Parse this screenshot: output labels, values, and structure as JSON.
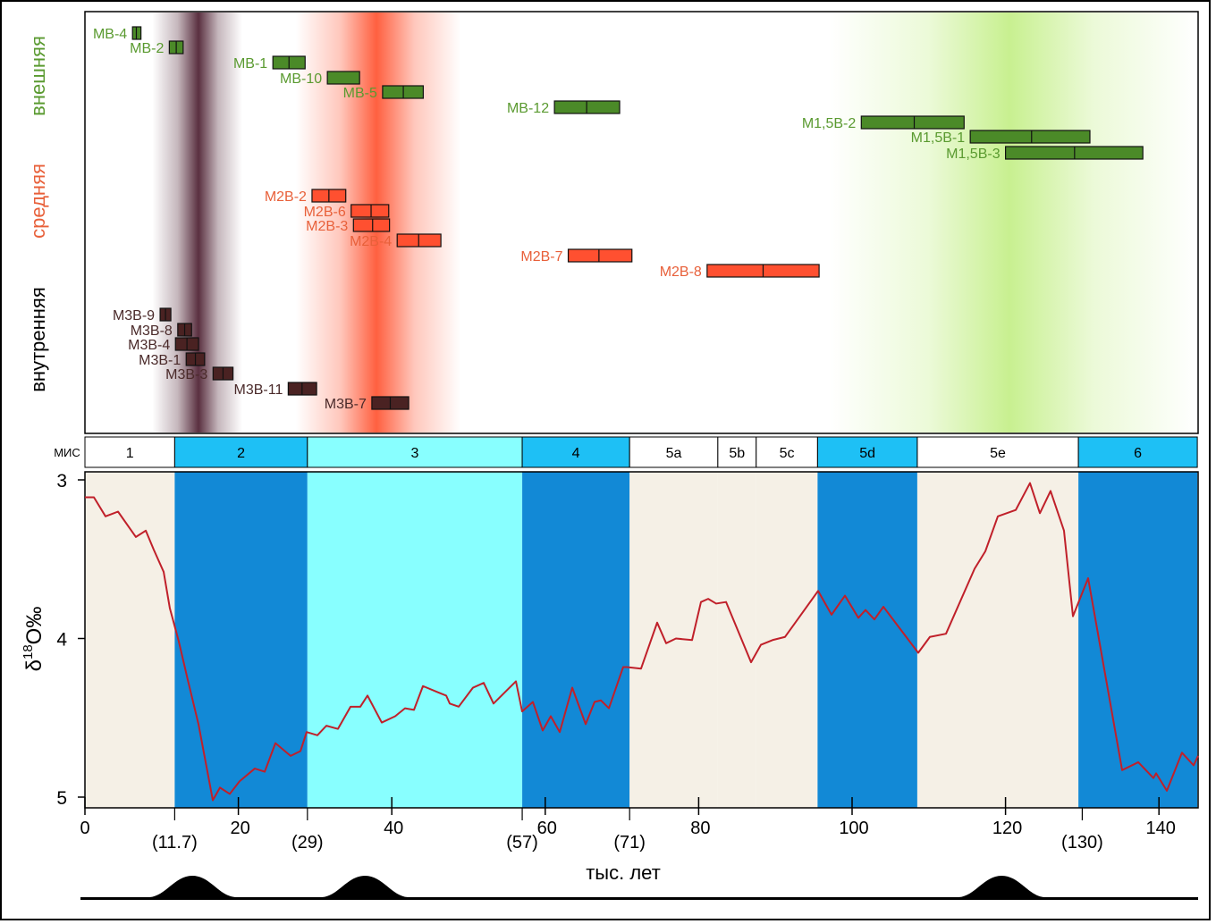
{
  "chart_data": [
    {
      "type": "range-bars",
      "title": "",
      "group_labels": {
        "outer": "внешняя",
        "middle": "средняя",
        "inner": "внутренняя"
      },
      "colors": {
        "outer": "#4b8a28",
        "outer_text": "#5a9a30",
        "middle": "#ff5030",
        "middle_text": "#e8603a",
        "inner": "#4a2222",
        "inner_text": "#4a2a2a"
      },
      "highlight_bands": [
        {
          "center": 14.8,
          "from": 8.8,
          "to": 20.5,
          "color": "#5a3040"
        },
        {
          "center": 38.0,
          "from": 27.5,
          "to": 49.0,
          "color": "#ff6040"
        },
        {
          "center": 120.5,
          "from": 97.0,
          "to": 145.0,
          "color": "#c8f090"
        }
      ],
      "samples": [
        {
          "name": "MB-4",
          "group": "outer",
          "from": 6.2,
          "to": 7.3,
          "mid": 6.7
        },
        {
          "name": "MB-2",
          "group": "outer",
          "from": 11.0,
          "to": 12.8,
          "mid": 11.9
        },
        {
          "name": "MB-1",
          "group": "outer",
          "from": 24.5,
          "to": 28.7,
          "mid": 26.6
        },
        {
          "name": "MB-10",
          "group": "outer",
          "from": 31.6,
          "to": 35.8,
          "mid": null
        },
        {
          "name": "MB-5",
          "group": "outer",
          "from": 38.8,
          "to": 44.1,
          "mid": 41.5
        },
        {
          "name": "MB-12",
          "group": "outer",
          "from": 61.2,
          "to": 69.7,
          "mid": 65.4
        },
        {
          "name": "M1,5B-2",
          "group": "outer",
          "from": 101.2,
          "to": 114.6,
          "mid": 108.1
        },
        {
          "name": "M1,5B-1",
          "group": "outer",
          "from": 115.4,
          "to": 131.0,
          "mid": 123.4
        },
        {
          "name": "M1,5B-3",
          "group": "outer",
          "from": 120.0,
          "to": 137.9,
          "mid": 129.0
        },
        {
          "name": "M2B-2",
          "group": "middle",
          "from": 29.6,
          "to": 34.0,
          "mid": 31.8
        },
        {
          "name": "M2B-6",
          "group": "middle",
          "from": 34.7,
          "to": 39.6,
          "mid": 37.3
        },
        {
          "name": "M2B-3",
          "group": "middle",
          "from": 35.0,
          "to": 39.7,
          "mid": 37.5
        },
        {
          "name": "M2B-4",
          "group": "middle",
          "from": 40.7,
          "to": 46.4,
          "mid": 43.5
        },
        {
          "name": "M2B-7",
          "group": "middle",
          "from": 63.0,
          "to": 71.3,
          "mid": 67.0
        },
        {
          "name": "M2B-8",
          "group": "middle",
          "from": 81.1,
          "to": 95.7,
          "mid": 88.4
        },
        {
          "name": "M3B-9",
          "group": "inner",
          "from": 9.8,
          "to": 11.2,
          "mid": 10.5
        },
        {
          "name": "M3B-8",
          "group": "inner",
          "from": 12.1,
          "to": 13.9,
          "mid": 13.0
        },
        {
          "name": "M3B-4",
          "group": "inner",
          "from": 11.8,
          "to": 14.8,
          "mid": 13.3
        },
        {
          "name": "M3B-1",
          "group": "inner",
          "from": 13.2,
          "to": 15.6,
          "mid": 14.4
        },
        {
          "name": "M3B-3",
          "group": "inner",
          "from": 16.7,
          "to": 19.3,
          "mid": 18.0
        },
        {
          "name": "M3B-11",
          "group": "inner",
          "from": 26.5,
          "to": 30.2,
          "mid": 28.3
        },
        {
          "name": "M3B-7",
          "group": "inner",
          "from": 37.4,
          "to": 42.2,
          "mid": 39.8
        }
      ]
    },
    {
      "type": "line",
      "mis_label": "МИС",
      "mis_stages": [
        {
          "label": "1",
          "from": 0,
          "to": 11.7,
          "header": "#ffffff",
          "fill": "#f5f0e6"
        },
        {
          "label": "2",
          "from": 11.7,
          "to": 29,
          "header": "#1ec0f5",
          "fill": "#1289d6"
        },
        {
          "label": "3",
          "from": 29,
          "to": 57,
          "header": "#88ffff",
          "fill": "#88ffff"
        },
        {
          "label": "4",
          "from": 57,
          "to": 71,
          "header": "#1ec0f5",
          "fill": "#1289d6"
        },
        {
          "label": "5a",
          "from": 71,
          "to": 82.5,
          "header": "#ffffff",
          "fill": "#f5f0e6"
        },
        {
          "label": "5b",
          "from": 82.5,
          "to": 87.5,
          "header": "#ffffff",
          "fill": "#f5f0e6"
        },
        {
          "label": "5c",
          "from": 87.5,
          "to": 95.5,
          "header": "#ffffff",
          "fill": "#f5f0e6"
        },
        {
          "label": "5d",
          "from": 95.5,
          "to": 108.5,
          "header": "#1ec0f5",
          "fill": "#1289d6"
        },
        {
          "label": "5e",
          "from": 108.5,
          "to": 129.5,
          "header": "#ffffff",
          "fill": "#f5f0e6"
        },
        {
          "label": "6",
          "from": 129.5,
          "to": 145,
          "header": "#1ec0f5",
          "fill": "#1289d6"
        }
      ],
      "xlabel": "тыс. лет",
      "ylabel_main": "δ",
      "ylabel_sup": "18",
      "ylabel_rest": "O‰",
      "xlim": [
        0,
        145
      ],
      "ylim_inverted": [
        2.95,
        5.07
      ],
      "x_ticks": [
        {
          "value": 0,
          "label": "0"
        },
        {
          "value": 20,
          "label": "20"
        },
        {
          "value": 40,
          "label": "40"
        },
        {
          "value": 60,
          "label": "60"
        },
        {
          "value": 80,
          "label": "80"
        },
        {
          "value": 100,
          "label": "100"
        },
        {
          "value": 120,
          "label": "120"
        },
        {
          "value": 140,
          "label": "140"
        }
      ],
      "boundary_labels": [
        {
          "value": 11.7,
          "label": "(11.7)"
        },
        {
          "value": 29,
          "label": "(29)"
        },
        {
          "value": 57,
          "label": "(57)"
        },
        {
          "value": 71,
          "label": "(71)"
        },
        {
          "value": 130,
          "label": "(130)"
        }
      ],
      "y_ticks": [
        {
          "value": 3,
          "label": "3"
        },
        {
          "value": 4,
          "label": "4"
        },
        {
          "value": 5,
          "label": "5"
        }
      ],
      "line_color": "#c0202a",
      "x": [
        0,
        1.17,
        2.68,
        4.31,
        6.64,
        7.93,
        8.97,
        10.26,
        11.07,
        12.24,
        13.4,
        14.8,
        16.67,
        17.6,
        18.88,
        20.16,
        22.14,
        23.43,
        24.83,
        26.81,
        28.09,
        28.9,
        30.3,
        31.47,
        32.98,
        34.62,
        35.9,
        36.83,
        38.69,
        40.44,
        41.72,
        42.89,
        44.06,
        46.04,
        47.09,
        47.55,
        48.72,
        50.58,
        51.98,
        53.26,
        56.18,
        56.99,
        58.39,
        59.67,
        60.72,
        61.89,
        63.52,
        65.27,
        66.43,
        67.25,
        68.3,
        70.16,
        70.63,
        72.49,
        74.59,
        75.76,
        77.04,
        79.14,
        80.3,
        81.24,
        82.28,
        83.57,
        86.83,
        88.11,
        89.63,
        91.26,
        95.57,
        97.32,
        99.07,
        100.82,
        101.75,
        102.91,
        104.08,
        108.62,
        110.14,
        112.24,
        115.97,
        117.37,
        119.0,
        121.33,
        123.19,
        124.48,
        125.87,
        127.62,
        128.79,
        130.77,
        135.2,
        137.3,
        139.28,
        139.63,
        141.03,
        143.0,
        144.52,
        145.1
      ],
      "y": [
        3.11,
        3.11,
        3.23,
        3.2,
        3.36,
        3.32,
        3.44,
        3.58,
        3.81,
        4.02,
        4.26,
        4.54,
        5.02,
        4.94,
        4.98,
        4.9,
        4.82,
        4.84,
        4.66,
        4.74,
        4.71,
        4.59,
        4.61,
        4.55,
        4.57,
        4.43,
        4.43,
        4.36,
        4.53,
        4.49,
        4.44,
        4.45,
        4.3,
        4.34,
        4.36,
        4.41,
        4.43,
        4.31,
        4.28,
        4.41,
        4.27,
        4.46,
        4.4,
        4.58,
        4.49,
        4.59,
        4.31,
        4.54,
        4.4,
        4.39,
        4.44,
        4.18,
        4.18,
        4.19,
        3.9,
        4.03,
        4.0,
        4.01,
        3.77,
        3.75,
        3.78,
        3.77,
        4.15,
        4.04,
        4.01,
        3.99,
        3.7,
        3.85,
        3.73,
        3.87,
        3.82,
        3.88,
        3.8,
        4.09,
        3.99,
        3.97,
        3.56,
        3.45,
        3.23,
        3.19,
        3.02,
        3.21,
        3.07,
        3.32,
        3.86,
        3.62,
        4.83,
        4.78,
        4.88,
        4.85,
        4.96,
        4.72,
        4.8,
        4.74
      ],
      "pulses": [
        14.0,
        36.5,
        119.5
      ]
    }
  ]
}
